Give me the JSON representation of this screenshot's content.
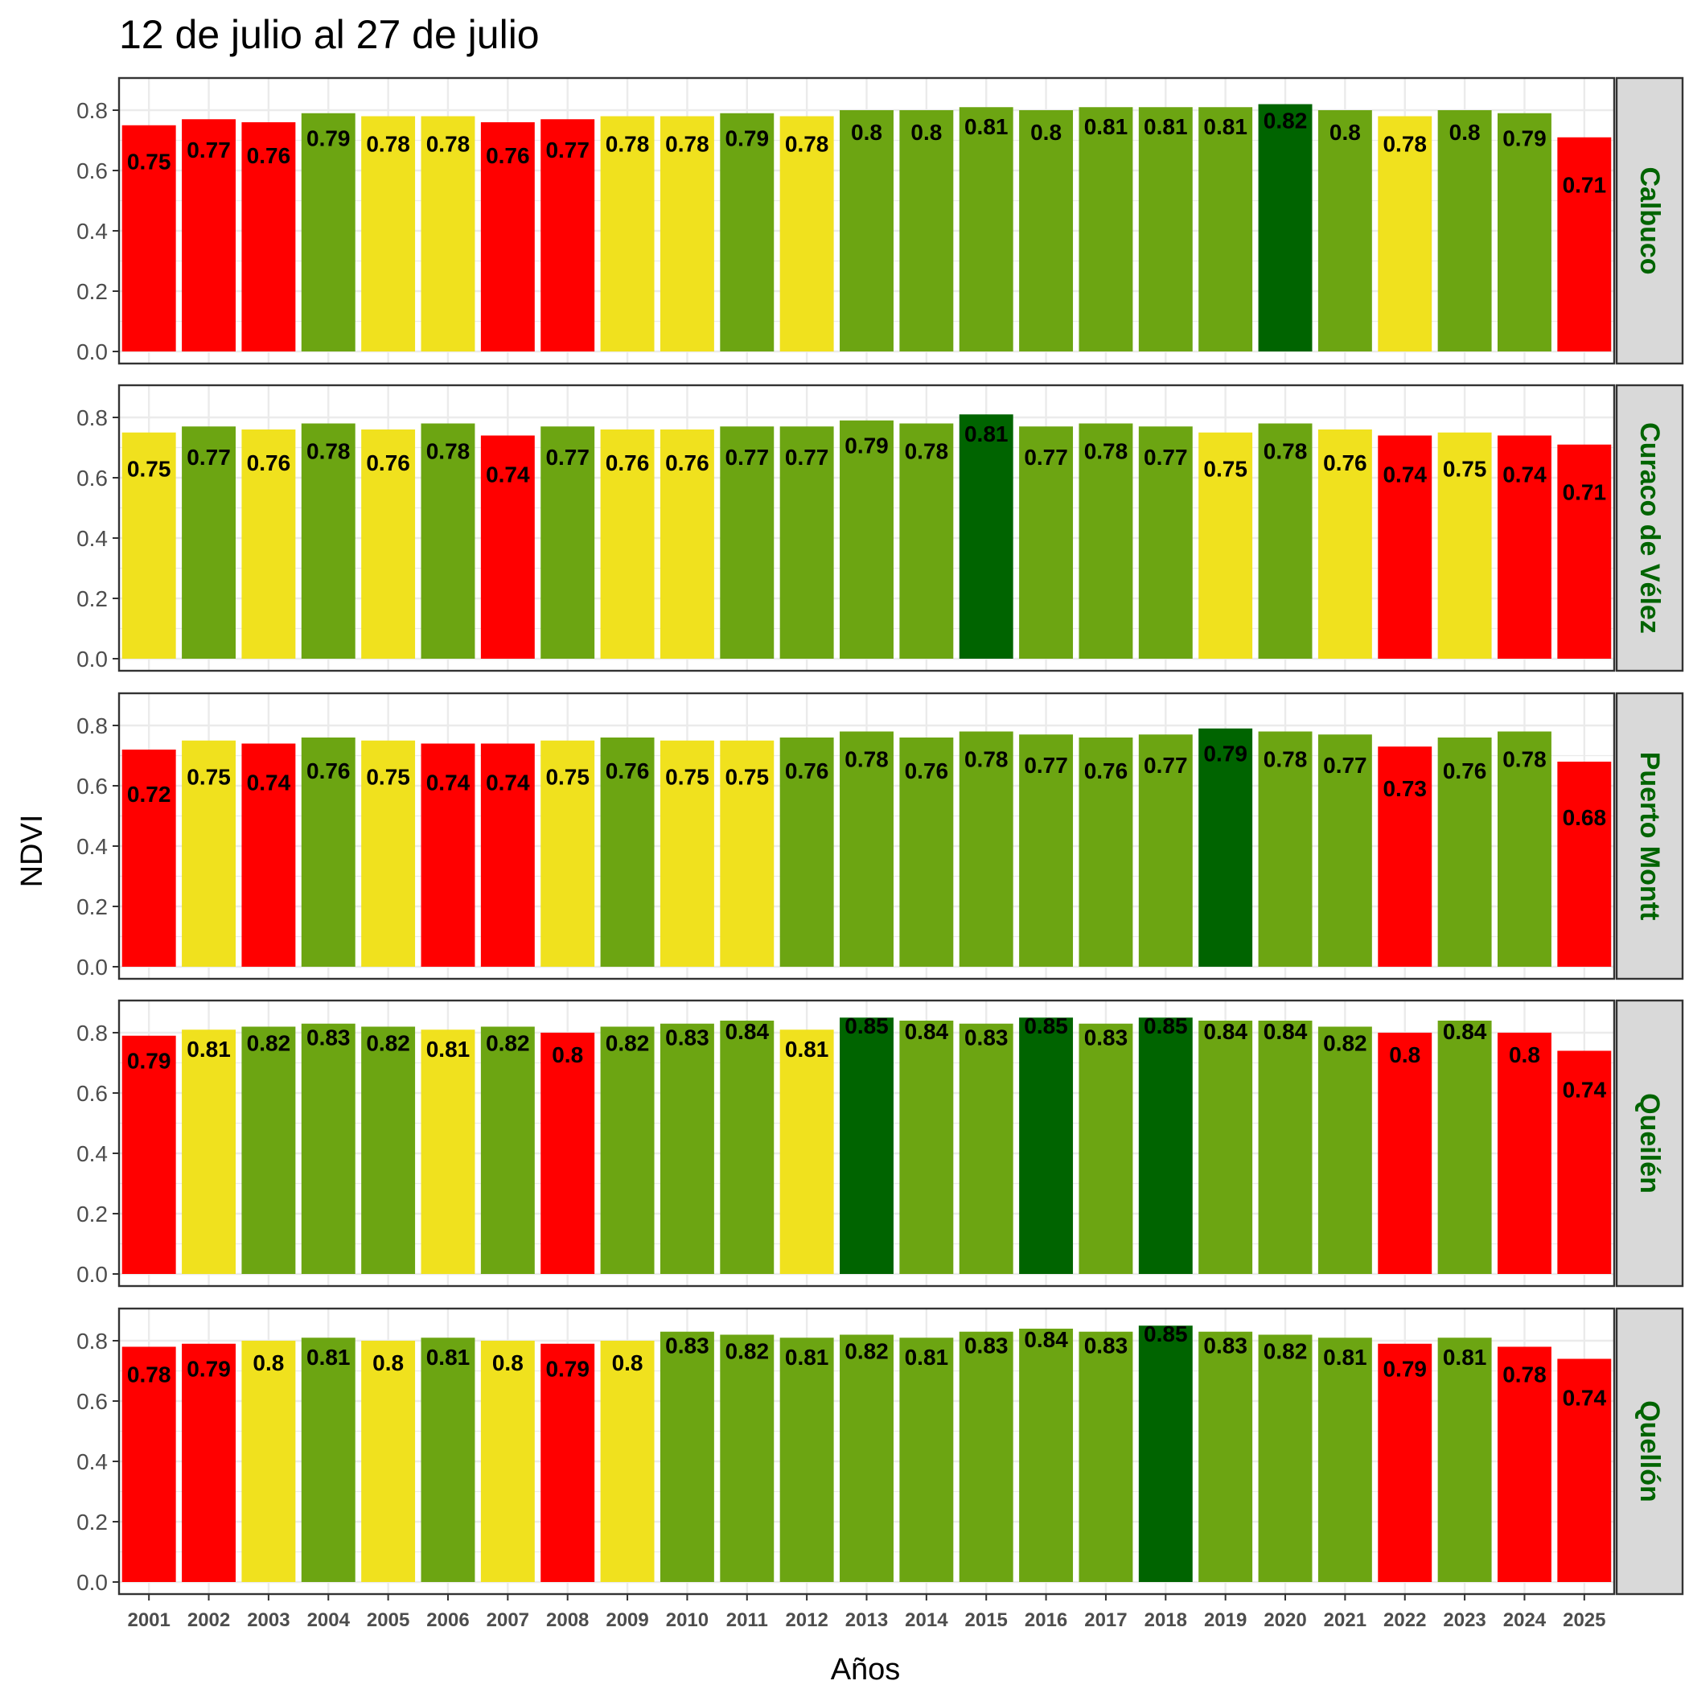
{
  "chart_data": {
    "type": "bar",
    "title": "12 de julio al 27 de julio",
    "xlabel": "Años",
    "ylabel": "NDVI",
    "ylim": [
      0,
      0.88
    ],
    "y_ticks": [
      "0.0",
      "0.2",
      "0.4",
      "0.6",
      "0.8"
    ],
    "categories": [
      "2001",
      "2002",
      "2003",
      "2004",
      "2005",
      "2006",
      "2007",
      "2008",
      "2009",
      "2010",
      "2011",
      "2012",
      "2013",
      "2014",
      "2015",
      "2016",
      "2017",
      "2018",
      "2019",
      "2020",
      "2021",
      "2022",
      "2023",
      "2024",
      "2025"
    ],
    "grid": true,
    "facet_strip_position": "right",
    "colors": {
      "red": "#ff0000",
      "yellow": "#f0e11e",
      "green": "#6ca512",
      "darkgreen": "#006400",
      "strip_bg": "#d9d9d9",
      "strip_text": "#006400",
      "grid": "#ebebeb",
      "axis_text": "#4d4d4d"
    },
    "panels": [
      {
        "name": "Calbuco",
        "values": [
          0.75,
          0.77,
          0.76,
          0.79,
          0.78,
          0.78,
          0.76,
          0.77,
          0.78,
          0.78,
          0.79,
          0.78,
          0.8,
          0.8,
          0.81,
          0.8,
          0.81,
          0.81,
          0.81,
          0.82,
          0.8,
          0.78,
          0.8,
          0.79,
          0.71
        ],
        "colors": [
          "red",
          "red",
          "red",
          "green",
          "yellow",
          "yellow",
          "red",
          "red",
          "yellow",
          "yellow",
          "green",
          "yellow",
          "green",
          "green",
          "green",
          "green",
          "green",
          "green",
          "green",
          "darkgreen",
          "green",
          "yellow",
          "green",
          "green",
          "red"
        ]
      },
      {
        "name": "Curaco de Vélez",
        "values": [
          0.75,
          0.77,
          0.76,
          0.78,
          0.76,
          0.78,
          0.74,
          0.77,
          0.76,
          0.76,
          0.77,
          0.77,
          0.79,
          0.78,
          0.81,
          0.77,
          0.78,
          0.77,
          0.75,
          0.78,
          0.76,
          0.74,
          0.75,
          0.74,
          0.71
        ],
        "colors": [
          "yellow",
          "green",
          "yellow",
          "green",
          "yellow",
          "green",
          "red",
          "green",
          "yellow",
          "yellow",
          "green",
          "green",
          "green",
          "green",
          "darkgreen",
          "green",
          "green",
          "green",
          "yellow",
          "green",
          "yellow",
          "red",
          "yellow",
          "red",
          "red"
        ]
      },
      {
        "name": "Puerto Montt",
        "values": [
          0.72,
          0.75,
          0.74,
          0.76,
          0.75,
          0.74,
          0.74,
          0.75,
          0.76,
          0.75,
          0.75,
          0.76,
          0.78,
          0.76,
          0.78,
          0.77,
          0.76,
          0.77,
          0.79,
          0.78,
          0.77,
          0.73,
          0.76,
          0.78,
          0.68
        ],
        "colors": [
          "red",
          "yellow",
          "red",
          "green",
          "yellow",
          "red",
          "red",
          "yellow",
          "green",
          "yellow",
          "yellow",
          "green",
          "green",
          "green",
          "green",
          "green",
          "green",
          "green",
          "darkgreen",
          "green",
          "green",
          "red",
          "green",
          "green",
          "red"
        ]
      },
      {
        "name": "Queilén",
        "values": [
          0.79,
          0.81,
          0.82,
          0.83,
          0.82,
          0.81,
          0.82,
          0.8,
          0.82,
          0.83,
          0.84,
          0.81,
          0.85,
          0.84,
          0.83,
          0.85,
          0.83,
          0.85,
          0.84,
          0.84,
          0.82,
          0.8,
          0.84,
          0.8,
          0.74
        ],
        "colors": [
          "red",
          "yellow",
          "green",
          "green",
          "green",
          "yellow",
          "green",
          "red",
          "green",
          "green",
          "green",
          "yellow",
          "darkgreen",
          "green",
          "green",
          "darkgreen",
          "green",
          "darkgreen",
          "green",
          "green",
          "green",
          "red",
          "green",
          "red",
          "red"
        ]
      },
      {
        "name": "Quellón",
        "values": [
          0.78,
          0.79,
          0.8,
          0.81,
          0.8,
          0.81,
          0.8,
          0.79,
          0.8,
          0.83,
          0.82,
          0.81,
          0.82,
          0.81,
          0.83,
          0.84,
          0.83,
          0.85,
          0.83,
          0.82,
          0.81,
          0.79,
          0.81,
          0.78,
          0.74
        ],
        "colors": [
          "red",
          "red",
          "yellow",
          "green",
          "yellow",
          "green",
          "yellow",
          "red",
          "yellow",
          "green",
          "green",
          "green",
          "green",
          "green",
          "green",
          "green",
          "green",
          "darkgreen",
          "green",
          "green",
          "green",
          "red",
          "green",
          "red",
          "red"
        ]
      }
    ]
  }
}
